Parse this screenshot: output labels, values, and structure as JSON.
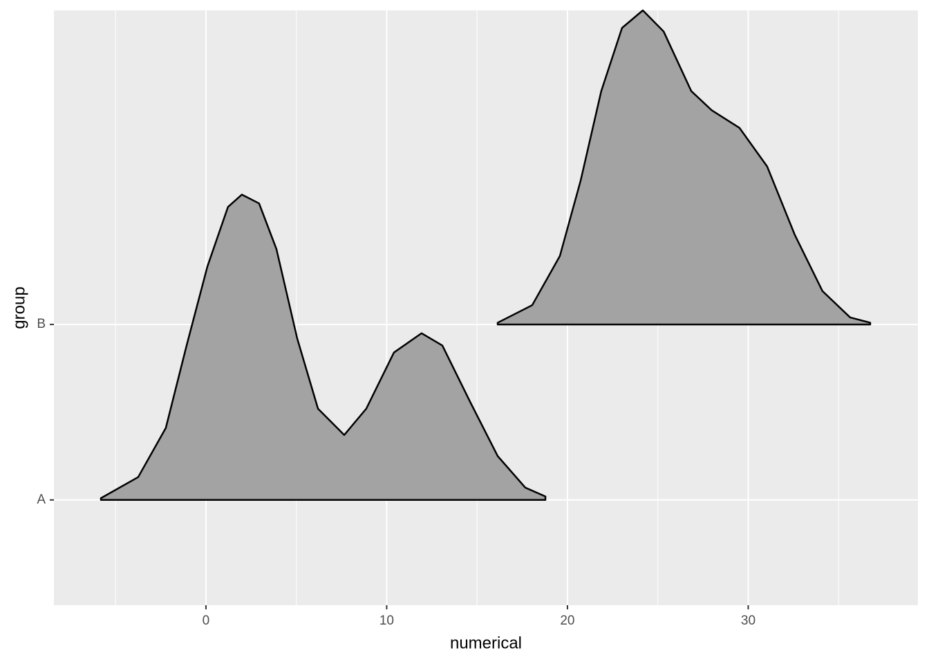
{
  "chart_data": {
    "type": "ridgeline",
    "x_label": "numerical",
    "y_label": "group",
    "categories": [
      "A",
      "B"
    ],
    "ridges": [
      {
        "x": [
          -5.81,
          -3.75,
          -2.22,
          -1.07,
          0.08,
          1.22,
          1.99,
          2.94,
          3.9,
          5.05,
          6.2,
          7.65,
          8.87,
          10.4,
          11.93,
          13.08,
          14.61,
          16.14,
          17.67,
          18.78
        ],
        "values": [
          0.01,
          0.13,
          0.41,
          0.88,
          1.33,
          1.67,
          1.74,
          1.69,
          1.43,
          0.92,
          0.52,
          0.37,
          0.52,
          0.84,
          0.95,
          0.88,
          0.56,
          0.25,
          0.07,
          0.02
        ]
      },
      {
        "x": [
          16.14,
          18.05,
          19.58,
          20.73,
          21.87,
          23.02,
          24.17,
          25.32,
          26.85,
          27.99,
          29.52,
          31.05,
          32.58,
          34.11,
          35.64,
          36.75
        ],
        "values": [
          0.01,
          0.11,
          0.39,
          0.82,
          1.33,
          1.69,
          1.79,
          1.67,
          1.33,
          1.22,
          1.12,
          0.9,
          0.51,
          0.19,
          0.04,
          0.01
        ]
      }
    ],
    "fill": "#a3a3a3",
    "line_color": "#000000",
    "xlim": [
      -8.41,
      39.39
    ],
    "xticks": [
      0,
      10,
      20,
      30
    ],
    "x_minor_ticks": [
      -5,
      5,
      15,
      25,
      35
    ],
    "ylim": [
      0.4,
      3.79
    ],
    "grid": true
  }
}
